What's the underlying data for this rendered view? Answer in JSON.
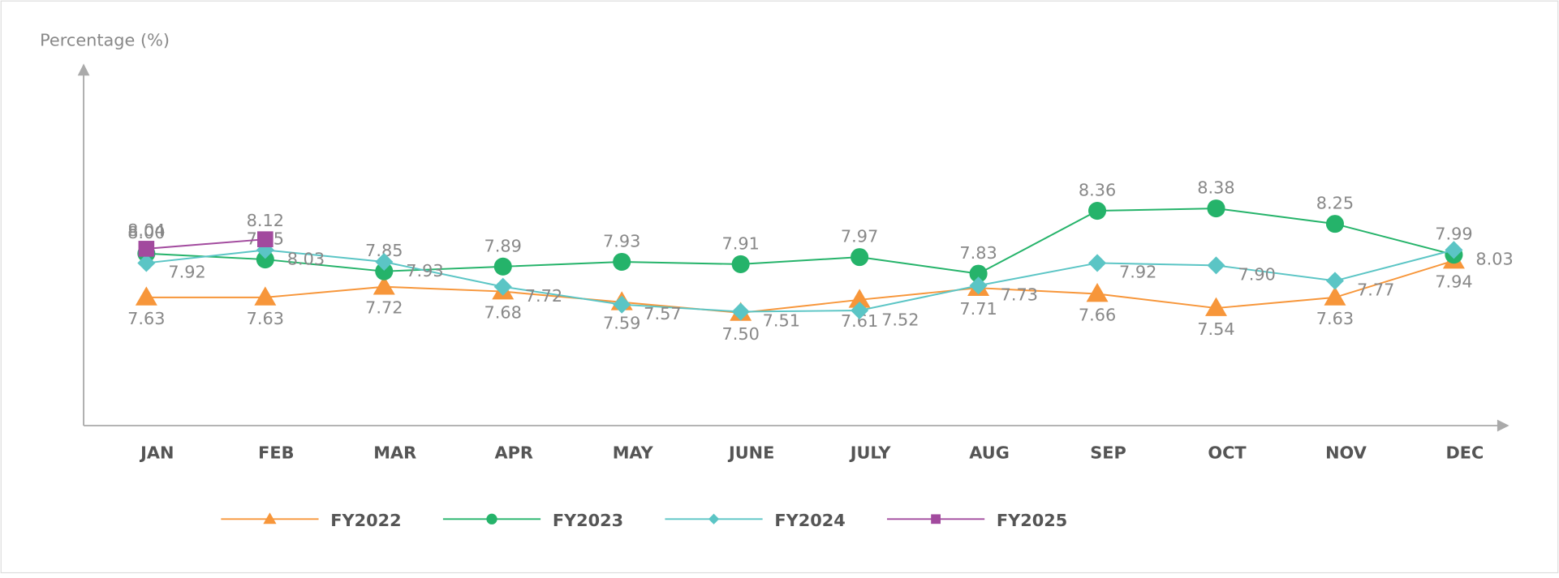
{
  "chart_data": {
    "type": "line",
    "y_label": "Percentage (%)",
    "categories": [
      "JAN",
      "FEB",
      "MAR",
      "APR",
      "MAY",
      "JUNE",
      "JULY",
      "AUG",
      "SEP",
      "OCT",
      "NOV",
      "DEC"
    ],
    "ylim": [
      6.55,
      9.6
    ],
    "series": [
      {
        "name": "FY2022",
        "color": "#f7963a",
        "marker": "triangle",
        "values": [
          7.63,
          7.63,
          7.72,
          7.68,
          7.59,
          7.5,
          7.61,
          7.71,
          7.66,
          7.54,
          7.63,
          7.94
        ],
        "value_labels": [
          "7.63",
          "7.63",
          "7.72",
          "7.68",
          "7.59",
          "7.50",
          "7.61",
          "7.71",
          "7.66",
          "7.54",
          "7.63",
          "7.94"
        ]
      },
      {
        "name": "FY2023",
        "color": "#25b36a",
        "marker": "circle",
        "values": [
          8,
          7.95,
          7.85,
          7.89,
          7.93,
          7.91,
          7.97,
          7.83,
          8.36,
          8.38,
          8.25,
          7.99
        ],
        "value_labels": [
          "8.00",
          "7.95",
          "7.85",
          "7.89",
          "7.93",
          "7.91",
          "7.97",
          "7.83",
          "8.36",
          "8.38",
          "8.25",
          "7.99"
        ]
      },
      {
        "name": "FY2024",
        "color": "#5bc5c5",
        "marker": "diamond",
        "values": [
          7.92,
          8.03,
          7.93,
          7.72,
          7.57,
          7.51,
          7.52,
          7.73,
          7.92,
          7.9,
          7.77,
          8.03
        ],
        "value_labels": [
          "7.92",
          "8.03",
          "7.93",
          "7.72",
          "7.57",
          "7.51",
          "7.52",
          "7.73",
          "7.92",
          "7.90",
          "7.77",
          "8.03"
        ]
      },
      {
        "name": "FY2025",
        "color": "#a24a9e",
        "marker": "square",
        "values": [
          8.04,
          8.12,
          null,
          null,
          null,
          null,
          null,
          null,
          null,
          null,
          null,
          null
        ],
        "value_labels": [
          "8.04",
          "8.12",
          null,
          null,
          null,
          null,
          null,
          null,
          null,
          null,
          null,
          null
        ]
      }
    ]
  }
}
